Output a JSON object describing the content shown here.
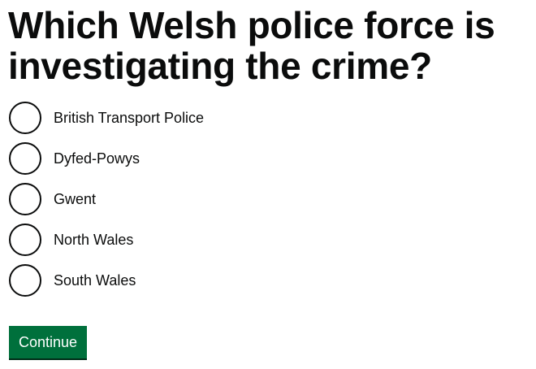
{
  "question": {
    "title": "Which Welsh police force is investigating the crime?"
  },
  "options": [
    {
      "label": "British Transport Police",
      "selected": false
    },
    {
      "label": "Dyfed-Powys",
      "selected": false
    },
    {
      "label": "Gwent",
      "selected": false
    },
    {
      "label": "North Wales",
      "selected": false
    },
    {
      "label": "South Wales",
      "selected": false
    }
  ],
  "actions": {
    "continue_label": "Continue"
  },
  "colors": {
    "text": "#0b0c0c",
    "button": "#00703c",
    "button_shadow": "#002d18"
  }
}
